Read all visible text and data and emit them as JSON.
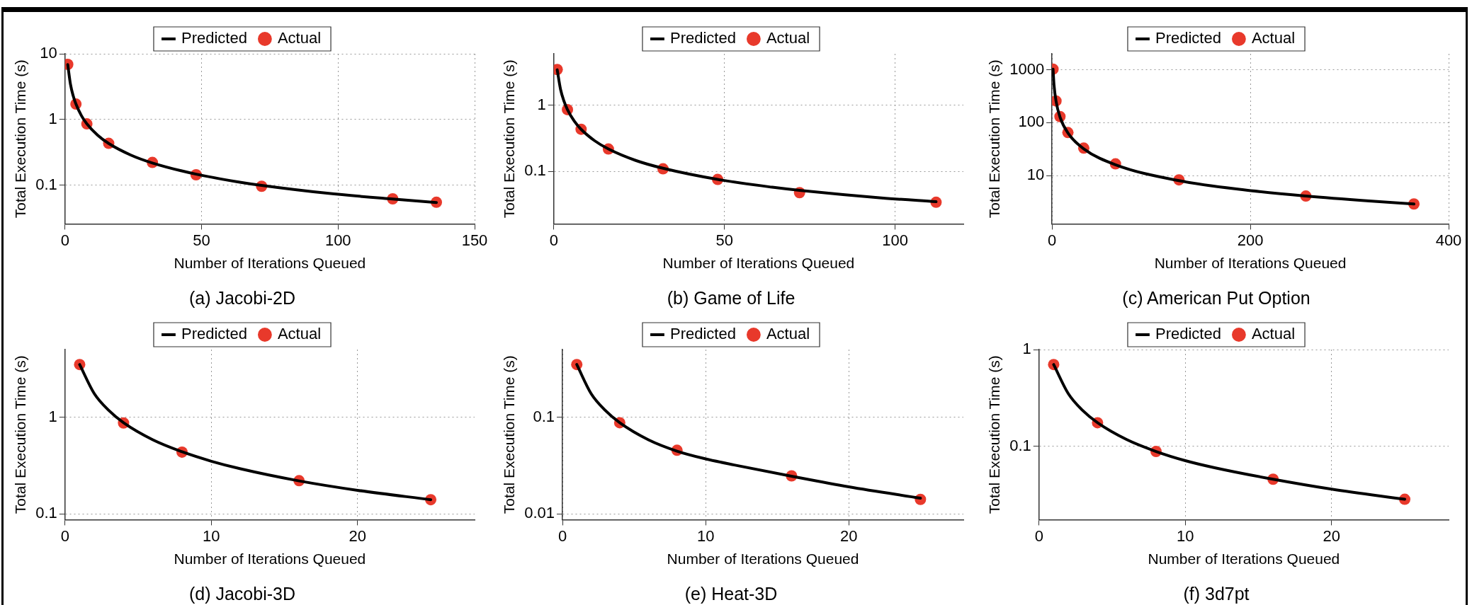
{
  "chart_data": [
    {
      "type": "line",
      "title": "(a) Jacobi-2D",
      "xlabel": "Number of Iterations Queued",
      "ylabel": "Total Execution Time (s)",
      "log": "y",
      "grid": true,
      "legend": "top",
      "xlim": [
        0,
        150
      ],
      "xticks": [
        0,
        50,
        100,
        150
      ],
      "ylim": [
        0.026,
        10
      ],
      "yticks": [
        0.1,
        1,
        10
      ],
      "series": [
        {
          "name": "Predicted",
          "type": "line",
          "color": "#000000",
          "marker": "none",
          "x": [
            1,
            2,
            3,
            4,
            6,
            8,
            12,
            16,
            24,
            32,
            48,
            64,
            72,
            96,
            120,
            136
          ],
          "values": [
            6.86,
            3.43,
            2.29,
            1.72,
            1.15,
            0.861,
            0.576,
            0.433,
            0.29,
            0.219,
            0.148,
            0.112,
            0.1,
            0.076,
            0.062,
            0.055
          ]
        },
        {
          "name": "Actual",
          "type": "scatter",
          "color": "#e8392b",
          "marker": "circle",
          "x": [
            1,
            4,
            8,
            16,
            32,
            48,
            72,
            120,
            136
          ],
          "values": [
            6.9,
            1.72,
            0.86,
            0.435,
            0.223,
            0.145,
            0.097,
            0.0625,
            0.0554
          ]
        }
      ]
    },
    {
      "type": "line",
      "title": "(b) Game of Life",
      "xlabel": "Number of Iterations Queued",
      "ylabel": "Total Execution Time (s)",
      "log": "y",
      "grid": true,
      "legend": "top",
      "xlim": [
        0,
        120
      ],
      "xticks": [
        0,
        50,
        100
      ],
      "ylim": [
        0.0162,
        6
      ],
      "yticks": [
        0.1,
        1
      ],
      "series": [
        {
          "name": "Predicted",
          "type": "line",
          "color": "#000000",
          "marker": "none",
          "x": [
            1,
            2,
            3,
            4,
            6,
            8,
            12,
            16,
            24,
            32,
            48,
            64,
            72,
            96,
            112
          ],
          "values": [
            3.44,
            1.72,
            1.15,
            0.864,
            0.577,
            0.434,
            0.291,
            0.219,
            0.147,
            0.112,
            0.076,
            0.058,
            0.052,
            0.04,
            0.035
          ]
        },
        {
          "name": "Actual",
          "type": "scatter",
          "color": "#e8392b",
          "marker": "circle",
          "x": [
            1,
            4,
            8,
            16,
            32,
            48,
            72,
            112
          ],
          "values": [
            3.47,
            0.86,
            0.435,
            0.219,
            0.11,
            0.076,
            0.048,
            0.0344
          ]
        }
      ]
    },
    {
      "type": "line",
      "title": "(c) American Put Option",
      "xlabel": "Number of Iterations Queued",
      "ylabel": "Total Execution Time (s)",
      "log": "y",
      "grid": true,
      "legend": "top",
      "xlim": [
        0,
        400
      ],
      "xticks": [
        0,
        200,
        400
      ],
      "ylim": [
        1.22,
        2000
      ],
      "yticks": [
        10,
        100,
        1000
      ],
      "series": [
        {
          "name": "Predicted",
          "type": "line",
          "color": "#000000",
          "marker": "none",
          "x": [
            1,
            2,
            4,
            8,
            16,
            32,
            64,
            128,
            192,
            256,
            320,
            365
          ],
          "values": [
            1025,
            513,
            256,
            128,
            64,
            32,
            16,
            8,
            5.4,
            4.1,
            3.3,
            2.9
          ]
        },
        {
          "name": "Actual",
          "type": "scatter",
          "color": "#e8392b",
          "marker": "circle",
          "x": [
            1,
            4,
            8,
            16,
            32,
            64,
            128,
            256,
            365
          ],
          "values": [
            1026,
            257,
            130,
            65,
            33,
            16.6,
            8.3,
            4.1,
            2.9
          ]
        }
      ]
    },
    {
      "type": "line",
      "title": "(d) Jacobi-3D",
      "xlabel": "Number of Iterations Queued",
      "ylabel": "Total Execution Time (s)",
      "log": "y",
      "grid": true,
      "legend": "top",
      "xlim": [
        0,
        28
      ],
      "xticks": [
        0,
        10,
        20
      ],
      "ylim": [
        0.087,
        5
      ],
      "yticks": [
        0.1,
        1
      ],
      "series": [
        {
          "name": "Predicted",
          "type": "line",
          "color": "#000000",
          "marker": "none",
          "x": [
            1,
            2,
            3,
            4,
            6,
            8,
            10,
            12,
            16,
            20,
            25
          ],
          "values": [
            3.5,
            1.75,
            1.17,
            0.875,
            0.583,
            0.438,
            0.35,
            0.292,
            0.219,
            0.175,
            0.14
          ]
        },
        {
          "name": "Actual",
          "type": "scatter",
          "color": "#e8392b",
          "marker": "circle",
          "x": [
            1,
            4,
            8,
            16,
            25
          ],
          "values": [
            3.5,
            0.87,
            0.435,
            0.22,
            0.14
          ]
        }
      ]
    },
    {
      "type": "line",
      "title": "(e) Heat-3D",
      "xlabel": "Number of Iterations Queued",
      "ylabel": "Total Execution Time (s)",
      "log": "y",
      "grid": true,
      "legend": "top",
      "xlim": [
        0,
        28
      ],
      "xticks": [
        0,
        10,
        20
      ],
      "ylim": [
        0.0087,
        0.5
      ],
      "yticks": [
        0.01,
        0.1
      ],
      "series": [
        {
          "name": "Predicted",
          "type": "line",
          "color": "#000000",
          "marker": "none",
          "x": [
            1,
            2,
            3,
            4,
            6,
            8,
            10,
            12,
            16,
            20,
            25
          ],
          "values": [
            0.35,
            0.175,
            0.117,
            0.0875,
            0.0583,
            0.0445,
            0.037,
            0.032,
            0.0245,
            0.019,
            0.0145
          ]
        },
        {
          "name": "Actual",
          "type": "scatter",
          "color": "#e8392b",
          "marker": "circle",
          "x": [
            1,
            4,
            8,
            16,
            25
          ],
          "values": [
            0.35,
            0.0875,
            0.0454,
            0.0247,
            0.0141
          ]
        }
      ]
    },
    {
      "type": "line",
      "title": "(f) 3d7pt",
      "xlabel": "Number of Iterations Queued",
      "ylabel": "Total Execution Time (s)",
      "log": "y",
      "grid": true,
      "legend": "top",
      "xlim": [
        0,
        28
      ],
      "xticks": [
        0,
        10,
        20
      ],
      "ylim": [
        0.0174,
        1
      ],
      "yticks": [
        0.1,
        1
      ],
      "series": [
        {
          "name": "Predicted",
          "type": "line",
          "color": "#000000",
          "marker": "none",
          "x": [
            1,
            2,
            3,
            4,
            6,
            8,
            10,
            12,
            16,
            20,
            25
          ],
          "values": [
            0.7,
            0.35,
            0.233,
            0.175,
            0.117,
            0.0883,
            0.071,
            0.06,
            0.0456,
            0.036,
            0.0283
          ]
        },
        {
          "name": "Actual",
          "type": "scatter",
          "color": "#e8392b",
          "marker": "circle",
          "x": [
            1,
            4,
            8,
            16,
            25
          ],
          "values": [
            0.7,
            0.175,
            0.0883,
            0.0456,
            0.0283
          ]
        }
      ]
    }
  ]
}
